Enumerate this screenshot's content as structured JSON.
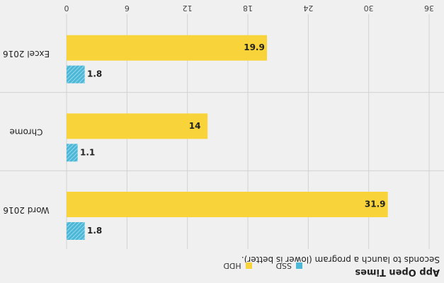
{
  "colors": {
    "hdd": "#f8d43a",
    "ssd": "#4bb8d8",
    "grid": "#d2d2d2",
    "background": "#f0f0f0"
  },
  "chart_data": {
    "type": "bar",
    "orientation": "horizontal",
    "title": "App Open Times",
    "subtitle": "Seconds to launch a program (lower is better).",
    "categories": [
      "Word 2016",
      "Chrome",
      "Excel 2016"
    ],
    "series": [
      {
        "name": "SSD",
        "values": [
          1.8,
          1.1,
          1.8
        ]
      },
      {
        "name": "HDD",
        "values": [
          31.9,
          14,
          19.9
        ]
      }
    ],
    "data_labels": {
      "SSD": [
        "1.8",
        "1.1",
        "1.8"
      ],
      "HDD": [
        "31.9",
        "14",
        "19.9"
      ]
    },
    "xlim": [
      0,
      36
    ],
    "ticks": [
      0,
      6,
      12,
      18,
      24,
      30,
      36
    ],
    "grid": true,
    "legend_position": "top"
  }
}
